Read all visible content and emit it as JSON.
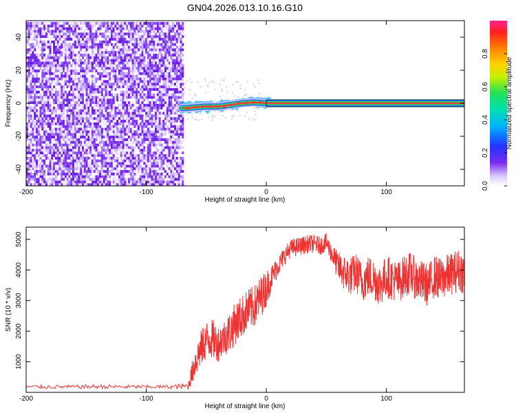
{
  "title": "GN04.2026.013.10.16.G10",
  "chart_data": [
    {
      "type": "heatmap",
      "xlabel": "Height of straight line (km)",
      "ylabel": "Frequency (Hz)",
      "xlim": [
        -200,
        165
      ],
      "ylim": [
        -50,
        50
      ],
      "x_ticks": [
        "-200",
        "-100",
        "0",
        "100"
      ],
      "y_ticks": [
        "-40",
        "-20",
        "0",
        "20",
        "40"
      ],
      "colorbar": {
        "label": "Normalized spectral amplitude",
        "range": [
          0,
          1
        ],
        "ticks": [
          "0.0",
          "0.2",
          "0.4",
          "0.6",
          "0.8"
        ]
      },
      "noise_region_x": [
        -200,
        -70
      ],
      "signal": [
        {
          "x": -70,
          "f": -3
        },
        {
          "x": -60,
          "f": -2.5
        },
        {
          "x": -50,
          "f": -2
        },
        {
          "x": -40,
          "f": -2
        },
        {
          "x": -30,
          "f": -1
        },
        {
          "x": -20,
          "f": 0
        },
        {
          "x": -10,
          "f": 0.5
        },
        {
          "x": 0,
          "f": 0
        },
        {
          "x": 50,
          "f": 0
        },
        {
          "x": 100,
          "f": 0
        },
        {
          "x": 165,
          "f": 0
        }
      ],
      "colors": {
        "noise": "#7a2cf0",
        "signal_core": "#ee3b3b",
        "signal_halo": "#22d66a"
      }
    },
    {
      "type": "line",
      "xlabel": "Height of straight line (km)",
      "ylabel": "SNR (10 * v/v)",
      "xlim": [
        -200,
        165
      ],
      "ylim": [
        0,
        5400
      ],
      "x_ticks": [
        "-200",
        "-100",
        "0",
        "100"
      ],
      "y_ticks": [
        "1000",
        "2000",
        "3000",
        "4000",
        "5000"
      ],
      "series": [
        {
          "color": "#ee3333",
          "x": [
            -200,
            -180,
            -160,
            -140,
            -120,
            -100,
            -80,
            -65,
            -60,
            -55,
            -50,
            -45,
            -40,
            -35,
            -30,
            -25,
            -20,
            -15,
            -10,
            -5,
            0,
            5,
            10,
            15,
            20,
            25,
            30,
            35,
            40,
            45,
            50,
            55,
            60,
            65,
            70,
            75,
            80,
            85,
            90,
            95,
            100,
            105,
            110,
            115,
            120,
            125,
            130,
            135,
            140,
            145,
            150,
            155,
            160,
            165
          ],
          "values": [
            180,
            180,
            180,
            190,
            180,
            180,
            180,
            200,
            900,
            1400,
            1700,
            1750,
            1600,
            1800,
            2000,
            2300,
            2500,
            2700,
            2800,
            3100,
            3400,
            3800,
            4150,
            4450,
            4700,
            4750,
            4800,
            4850,
            4850,
            4800,
            4900,
            4500,
            4100,
            3900,
            3800,
            3900,
            3600,
            3800,
            3700,
            3500,
            3800,
            3700,
            3600,
            3800,
            3900,
            3700,
            3600,
            3500,
            3800,
            3700,
            3800,
            3900,
            4000,
            3900
          ],
          "noise_amplitude": [
            60,
            60,
            60,
            70,
            60,
            60,
            60,
            120,
            500,
            600,
            650,
            650,
            600,
            600,
            700,
            700,
            700,
            700,
            700,
            700,
            600,
            400,
            350,
            300,
            300,
            300,
            300,
            300,
            300,
            300,
            300,
            350,
            500,
            600,
            650,
            650,
            650,
            700,
            700,
            700,
            700,
            700,
            700,
            700,
            700,
            700,
            700,
            700,
            700,
            700,
            700,
            700,
            700,
            700
          ]
        }
      ]
    }
  ]
}
